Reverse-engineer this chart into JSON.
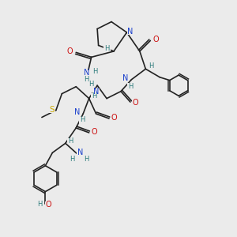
{
  "bg_color": "#ebebeb",
  "bond_color": "#222222",
  "bond_width": 1.2,
  "N_color": "#1a3fcc",
  "O_color": "#cc1111",
  "S_color": "#ccaa00",
  "C_label_color": "#2a7a7a",
  "figsize": [
    3.0,
    3.0
  ],
  "dpi": 100,
  "xlim": [
    0,
    10
  ],
  "ylim": [
    0,
    10
  ]
}
